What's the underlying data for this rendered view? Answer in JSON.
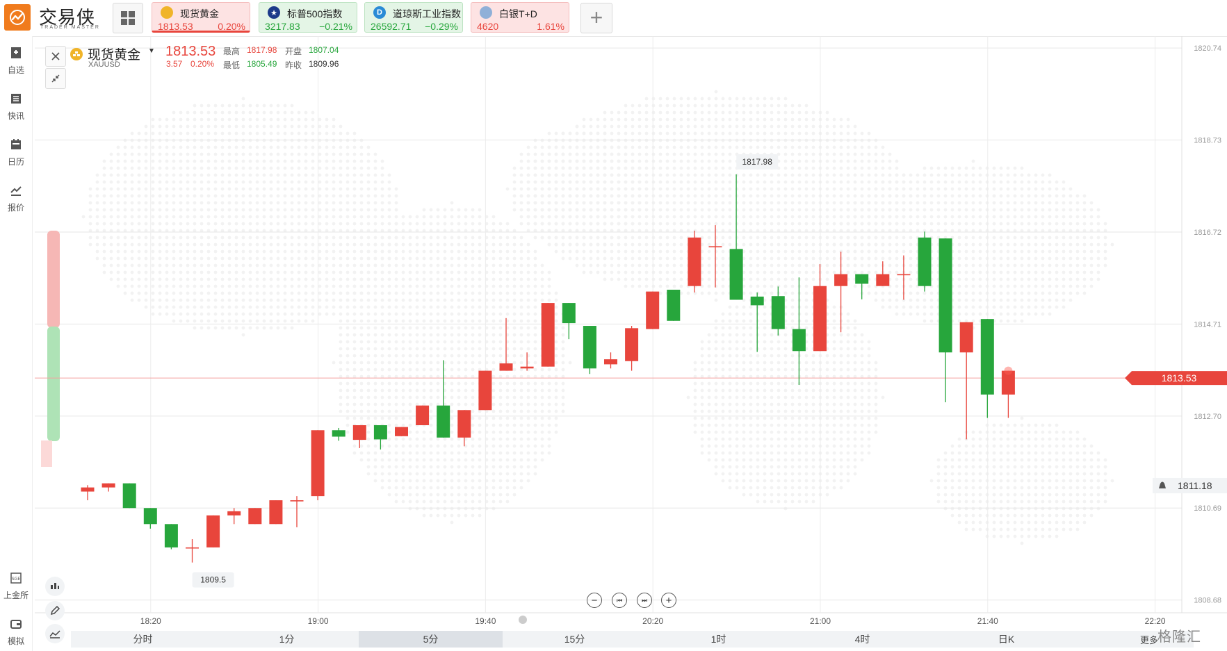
{
  "brand": {
    "title": "交易侠",
    "subtitle": "TRADER MASTER"
  },
  "tickers": [
    {
      "name": "现货黄金",
      "price": "1813.53",
      "change": "0.20%",
      "dir": "up",
      "icon": "gold-coin-icon",
      "active": true
    },
    {
      "name": "标普500指数",
      "price": "3217.83",
      "change": "−0.21%",
      "dir": "down",
      "icon": "us-flag-icon"
    },
    {
      "name": "道琼斯工业指数",
      "price": "26592.71",
      "change": "−0.29%",
      "dir": "down",
      "icon": "dow-logo-icon"
    },
    {
      "name": "白银T+D",
      "price": "4620",
      "change": "1.61%",
      "dir": "up",
      "icon": "silver-icon"
    }
  ],
  "sidebar": {
    "top": [
      {
        "label": "自选",
        "icon": "bookmark-add-icon"
      },
      {
        "label": "快讯",
        "icon": "news-list-icon"
      },
      {
        "label": "日历",
        "icon": "calendar-icon"
      },
      {
        "label": "报价",
        "icon": "line-chart-icon"
      }
    ],
    "bottom": [
      {
        "label": "上金所",
        "icon": "sge-logo-icon"
      },
      {
        "label": "模拟",
        "icon": "wallet-icon"
      }
    ]
  },
  "symbol": {
    "name": "现货黄金",
    "code": "XAUUSD",
    "price": "1813.53",
    "change": "3.57",
    "change_pct": "0.20%",
    "high_label": "最高",
    "high": "1817.98",
    "open_label": "开盘",
    "open": "1807.04",
    "low_label": "最低",
    "low": "1805.49",
    "prev_label": "昨收",
    "prev": "1809.96"
  },
  "chart_data": {
    "type": "candlestick",
    "y_ticks": [
      "1820.74",
      "1818.73",
      "1816.72",
      "1814.71",
      "1812.70",
      "1810.69",
      "1808.68"
    ],
    "x_ticks": [
      {
        "label": "18:20",
        "index": 3
      },
      {
        "label": "19:00",
        "index": 11
      },
      {
        "label": "19:40",
        "index": 19
      },
      {
        "label": "20:20",
        "index": 27
      },
      {
        "label": "21:00",
        "index": 35
      },
      {
        "label": "21:40",
        "index": 43
      },
      {
        "label": "22:20",
        "index": 51
      }
    ],
    "ylim": [
      1808.25,
      1821.0
    ],
    "current_price": 1813.53,
    "current_price_label": "1813.53",
    "alert_price": 1811.18,
    "alert_price_label": "1811.18",
    "max_annotation": {
      "label": "1817.98",
      "index": 32,
      "value": 1817.98
    },
    "min_annotation": {
      "label": "1809.5",
      "index": 6,
      "value": 1809.5
    },
    "candles": [
      [
        1811.05,
        1811.14,
        1810.86,
        1811.19
      ],
      [
        1811.14,
        1811.23,
        1811.05,
        1811.23
      ],
      [
        1811.23,
        1810.69,
        1810.69,
        1811.23
      ],
      [
        1810.69,
        1810.34,
        1810.24,
        1810.69
      ],
      [
        1810.34,
        1809.83,
        1809.79,
        1810.34
      ],
      [
        1809.83,
        1809.83,
        1809.5,
        1810.01
      ],
      [
        1809.83,
        1810.53,
        1809.83,
        1810.53
      ],
      [
        1810.53,
        1810.62,
        1810.34,
        1810.69
      ],
      [
        1810.34,
        1810.69,
        1810.34,
        1810.69
      ],
      [
        1810.34,
        1810.86,
        1810.34,
        1810.86
      ],
      [
        1810.86,
        1810.86,
        1810.27,
        1810.95
      ],
      [
        1810.95,
        1812.39,
        1810.86,
        1812.39
      ],
      [
        1812.39,
        1812.25,
        1812.16,
        1812.44
      ],
      [
        1812.18,
        1812.5,
        1812.0,
        1812.5
      ],
      [
        1812.5,
        1812.19,
        1811.97,
        1812.5
      ],
      [
        1812.26,
        1812.46,
        1812.26,
        1812.46
      ],
      [
        1812.5,
        1812.93,
        1812.5,
        1812.93
      ],
      [
        1812.93,
        1812.23,
        1812.23,
        1813.92
      ],
      [
        1812.23,
        1812.83,
        1812.04,
        1812.83
      ],
      [
        1812.83,
        1813.69,
        1812.83,
        1813.69
      ],
      [
        1813.69,
        1813.85,
        1813.69,
        1814.84
      ],
      [
        1813.74,
        1813.78,
        1813.69,
        1814.09
      ],
      [
        1813.78,
        1815.17,
        1813.78,
        1815.17
      ],
      [
        1815.17,
        1814.73,
        1814.38,
        1815.17
      ],
      [
        1814.67,
        1813.74,
        1813.62,
        1814.67
      ],
      [
        1813.83,
        1813.94,
        1813.74,
        1814.09
      ],
      [
        1813.9,
        1814.62,
        1813.69,
        1814.67
      ],
      [
        1814.6,
        1815.42,
        1814.6,
        1815.42
      ],
      [
        1815.46,
        1814.78,
        1814.78,
        1815.46
      ],
      [
        1815.54,
        1816.6,
        1815.4,
        1816.75
      ],
      [
        1816.41,
        1816.41,
        1815.51,
        1816.87
      ],
      [
        1816.35,
        1815.24,
        1815.24,
        1817.98
      ],
      [
        1815.31,
        1815.12,
        1814.1,
        1815.4
      ],
      [
        1815.32,
        1814.6,
        1814.46,
        1815.53
      ],
      [
        1814.6,
        1814.12,
        1813.38,
        1815.73
      ],
      [
        1814.12,
        1815.54,
        1814.12,
        1816.02
      ],
      [
        1815.54,
        1815.8,
        1814.53,
        1816.29
      ],
      [
        1815.8,
        1815.59,
        1815.25,
        1815.8
      ],
      [
        1815.54,
        1815.8,
        1815.54,
        1816.08
      ],
      [
        1815.8,
        1815.8,
        1815.24,
        1816.21
      ],
      [
        1816.6,
        1815.54,
        1815.42,
        1816.73
      ],
      [
        1816.58,
        1814.09,
        1813.0,
        1816.58
      ],
      [
        1814.09,
        1814.75,
        1812.19,
        1814.75
      ],
      [
        1814.82,
        1813.17,
        1812.66,
        1814.82
      ],
      [
        1813.17,
        1813.69,
        1812.66,
        1813.69
      ]
    ]
  },
  "nav_controls": [
    "zoom-out-icon",
    "step-back-icon",
    "step-forward-icon",
    "zoom-in-icon"
  ],
  "periods": [
    "分时",
    "1分",
    "5分",
    "15分",
    "1时",
    "4时",
    "日K"
  ],
  "active_period": "5分",
  "more_label": "更多",
  "watermark": "格隆汇",
  "colors": {
    "up": "#e8453c",
    "down": "#27a63c"
  }
}
